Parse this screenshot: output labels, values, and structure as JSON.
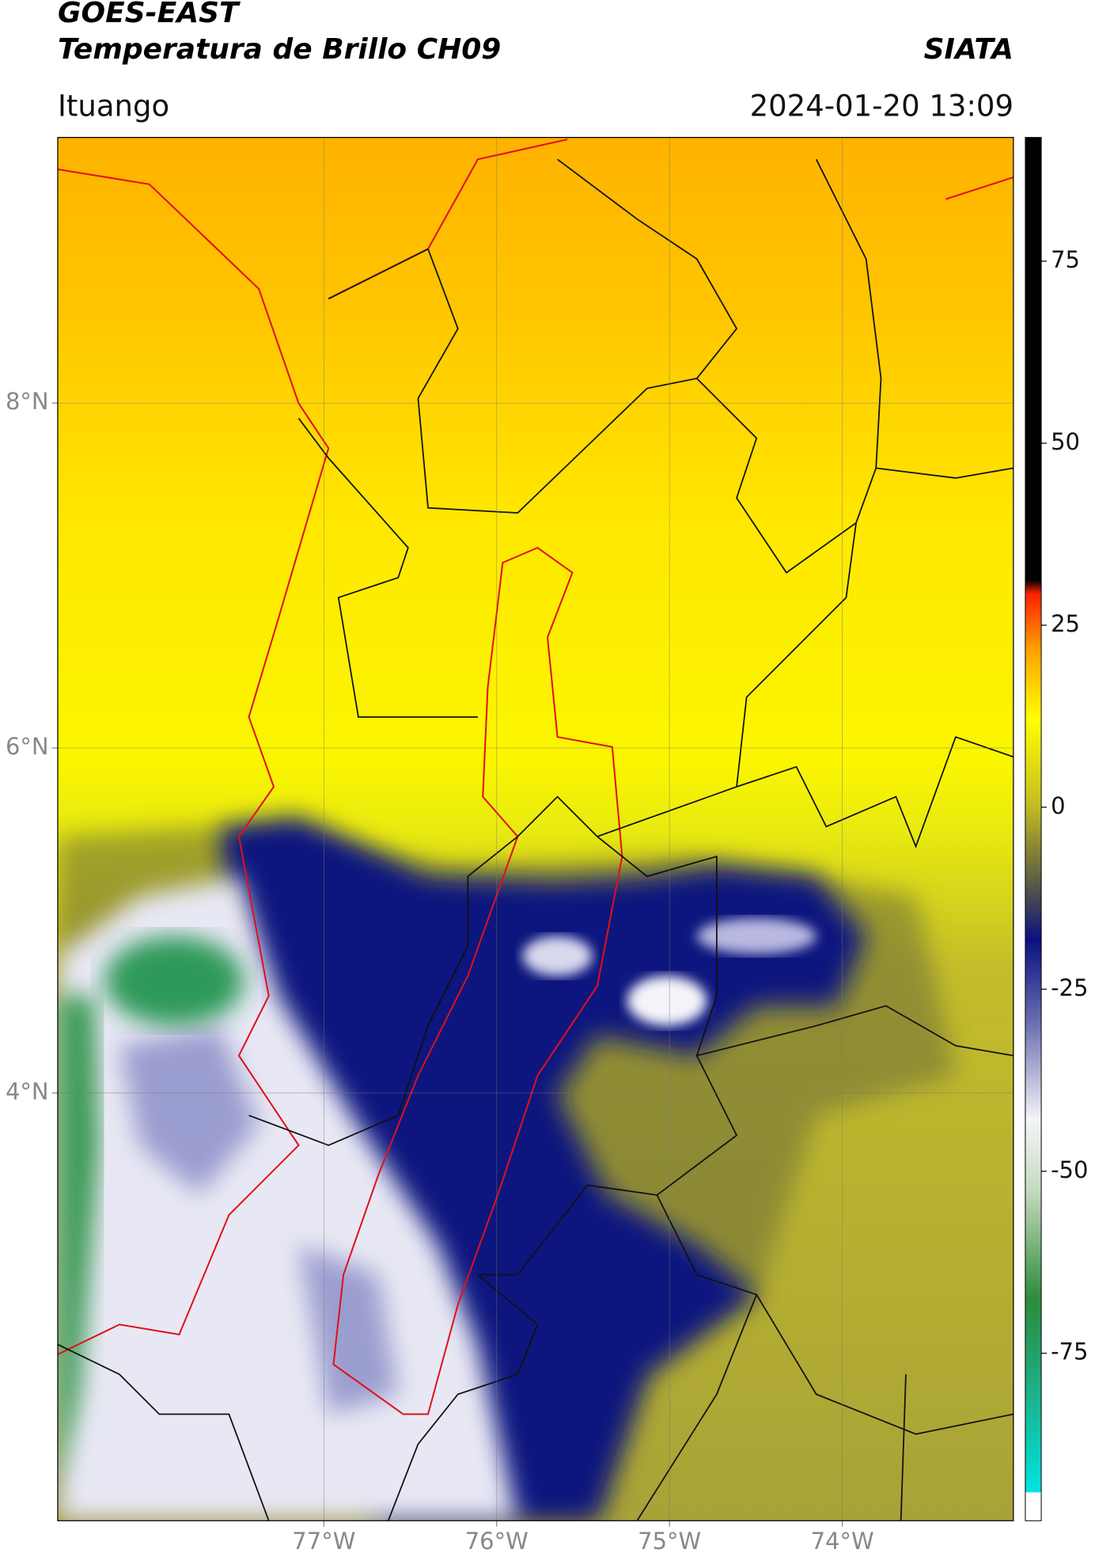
{
  "header": {
    "satellite": "GOES-EAST",
    "product": "Temperatura de Brillo CH09",
    "agency": "SIATA",
    "region": "Ituango",
    "datetime": "2024-01-20 13:09"
  },
  "map": {
    "lonlim": [
      -78.54,
      -73.01
    ],
    "latlim": [
      1.52,
      9.54
    ],
    "xticks": [
      {
        "value": -77,
        "label": "77°W"
      },
      {
        "value": -76,
        "label": "76°W"
      },
      {
        "value": -75,
        "label": "75°W"
      },
      {
        "value": -74,
        "label": "74°W"
      }
    ],
    "yticks": [
      {
        "value": 8,
        "label": "8°N"
      },
      {
        "value": 6,
        "label": "6°N"
      },
      {
        "value": 4,
        "label": "4°N"
      }
    ],
    "grid": true
  },
  "colorbar": {
    "ylim": [
      -98,
      92
    ],
    "yticks": [
      -75,
      -50,
      -25,
      0,
      25,
      50,
      75
    ]
  }
}
